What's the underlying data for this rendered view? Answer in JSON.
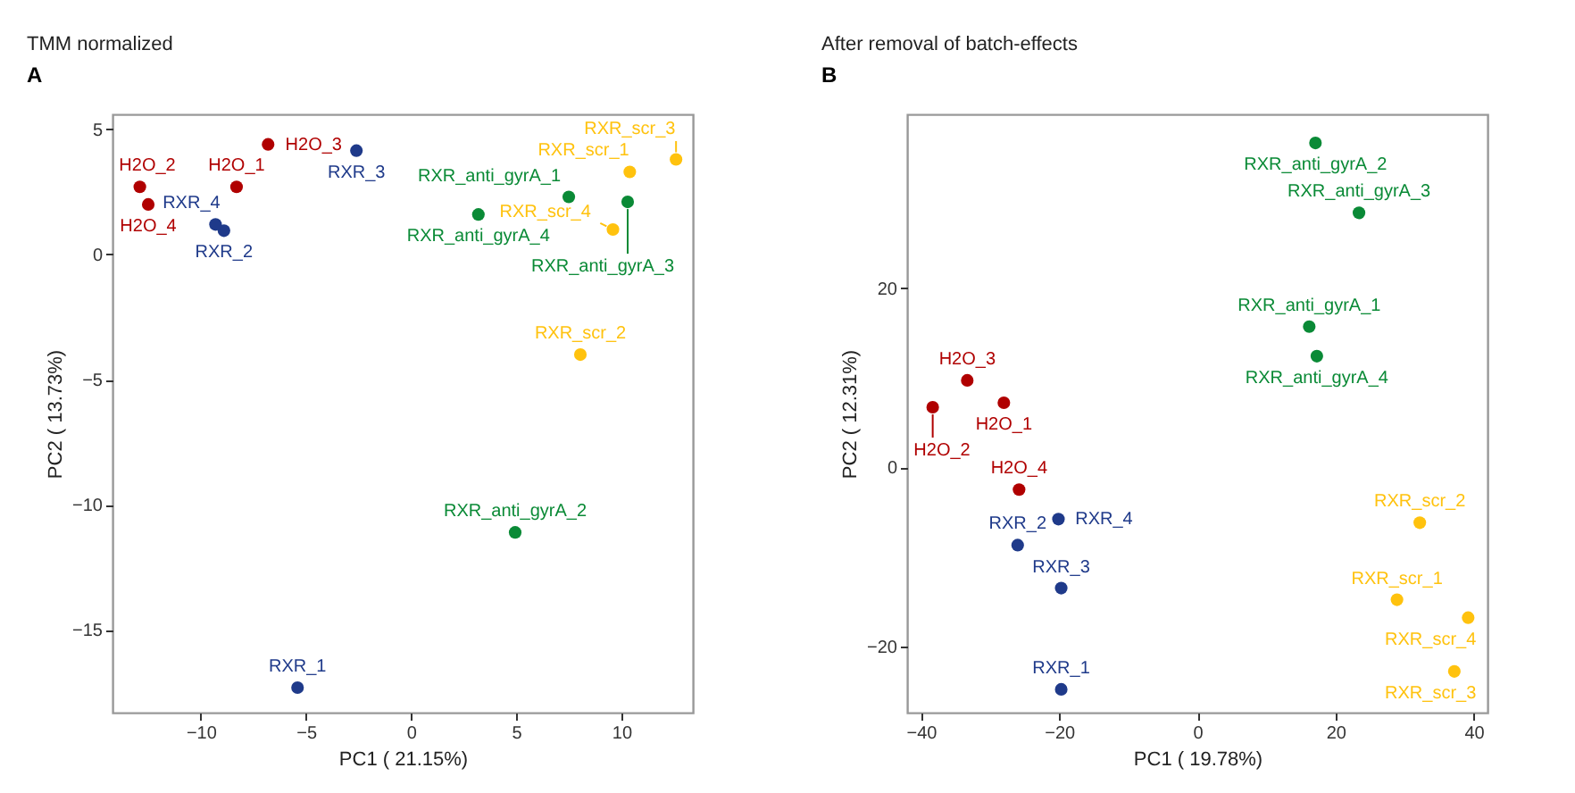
{
  "chart_data": [
    {
      "type": "scatter",
      "title": "TMM normalized",
      "xlabel": "PC1 ( 21.15%)",
      "ylabel": "PC2 ( 13.73%)",
      "xlim": [
        -14.2,
        13.4
      ],
      "ylim": [
        -18.3,
        5.6
      ],
      "xticks": [
        -10,
        -5,
        0,
        5,
        10
      ],
      "yticks": [
        -15,
        -10,
        -5,
        0,
        5
      ],
      "grid": false,
      "marker": "circle",
      "series": [
        {
          "color": "#b00000",
          "x": [
            -8.3,
            -12.9,
            -6.8,
            -12.5
          ],
          "values": [
            2.7,
            2.7,
            4.4,
            2.0
          ]
        },
        {
          "color": "#1f3a8a",
          "x": [
            -5.4,
            -8.9,
            -2.6,
            -9.3
          ],
          "values": [
            -17.3,
            0.95,
            4.15,
            1.2
          ]
        },
        {
          "color": "#0a8a36",
          "x": [
            7.5,
            4.95,
            10.3,
            3.2
          ],
          "values": [
            2.3,
            -11.1,
            2.1,
            1.6
          ]
        },
        {
          "color": "#ffc20e",
          "x": [
            10.4,
            8.05,
            12.6,
            9.6
          ],
          "values": [
            3.3,
            -4.0,
            3.8,
            1.0
          ]
        }
      ],
      "annotations": [
        "A",
        {
          "text": "H2O_1",
          "x": -8.3,
          "y": 2.7
        },
        {
          "text": "H2O_2",
          "x": -12.9,
          "y": 2.7
        },
        {
          "text": "H2O_3",
          "x": -6.8,
          "y": 4.4
        },
        {
          "text": "H2O_4",
          "x": -12.5,
          "y": 2.0
        },
        {
          "text": "RXR_1",
          "x": -5.4,
          "y": -17.3
        },
        {
          "text": "RXR_2",
          "x": -8.9,
          "y": 0.95
        },
        {
          "text": "RXR_3",
          "x": -2.6,
          "y": 4.15
        },
        {
          "text": "RXR_4",
          "x": -9.3,
          "y": 1.2
        },
        {
          "text": "RXR_anti_gyrA_1",
          "x": 7.5,
          "y": 2.3
        },
        {
          "text": "RXR_anti_gyrA_2",
          "x": 4.95,
          "y": -11.1
        },
        {
          "text": "RXR_anti_gyrA_3",
          "x": 10.3,
          "y": 2.1
        },
        {
          "text": "RXR_anti_gyrA_4",
          "x": 3.2,
          "y": 1.6
        },
        {
          "text": "RXR_scr_1",
          "x": 10.4,
          "y": 3.3
        },
        {
          "text": "RXR_scr_2",
          "x": 8.05,
          "y": -4.0
        },
        {
          "text": "RXR_scr_3",
          "x": 12.6,
          "y": 3.8
        },
        {
          "text": "RXR_scr_4",
          "x": 9.6,
          "y": 1.0
        }
      ]
    },
    {
      "type": "scatter",
      "title": "After removal of batch-effects",
      "xlabel": "PC1 ( 19.78%)",
      "ylabel": "PC2 ( 12.31%)",
      "xlim": [
        -42,
        42
      ],
      "ylim": [
        -27.4,
        39.4
      ],
      "xticks": [
        -40,
        -20,
        0,
        20,
        40
      ],
      "yticks": [
        -20,
        0,
        20
      ],
      "grid": false,
      "marker": "circle",
      "series": [
        {
          "color": "#b00000",
          "x": [
            -28.0,
            -38.3,
            -33.3,
            -25.8
          ],
          "values": [
            7.2,
            6.7,
            9.7,
            -2.5
          ]
        },
        {
          "color": "#1f3a8a",
          "x": [
            -19.7,
            -26.0,
            -19.7,
            -20.1
          ],
          "values": [
            -24.8,
            -8.7,
            -13.5,
            -5.8
          ]
        },
        {
          "color": "#0a8a36",
          "x": [
            16.2,
            17.1,
            23.4,
            17.3
          ],
          "values": [
            15.7,
            36.2,
            28.4,
            12.4
          ]
        },
        {
          "color": "#ffc20e",
          "x": [
            28.9,
            32.2,
            37.2,
            39.2
          ],
          "values": [
            -14.8,
            -6.2,
            -22.8,
            -16.8
          ]
        }
      ],
      "annotations": [
        "B",
        {
          "text": "H2O_1",
          "x": -28.0,
          "y": 7.2
        },
        {
          "text": "H2O_2",
          "x": -38.3,
          "y": 6.7
        },
        {
          "text": "H2O_3",
          "x": -33.3,
          "y": 9.7
        },
        {
          "text": "H2O_4",
          "x": -25.8,
          "y": -2.5
        },
        {
          "text": "RXR_1",
          "x": -19.7,
          "y": -24.8
        },
        {
          "text": "RXR_2",
          "x": -26.0,
          "y": -8.7
        },
        {
          "text": "RXR_3",
          "x": -19.7,
          "y": -13.5
        },
        {
          "text": "RXR_4",
          "x": -20.1,
          "y": -5.8
        },
        {
          "text": "RXR_anti_gyrA_1",
          "x": 16.2,
          "y": 15.7
        },
        {
          "text": "RXR_anti_gyrA_2",
          "x": 17.1,
          "y": 36.2
        },
        {
          "text": "RXR_anti_gyrA_3",
          "x": 23.4,
          "y": 28.4
        },
        {
          "text": "RXR_anti_gyrA_4",
          "x": 17.3,
          "y": 12.4
        },
        {
          "text": "RXR_scr_1",
          "x": 28.9,
          "y": -14.8
        },
        {
          "text": "RXR_scr_2",
          "x": 32.2,
          "y": -6.2
        },
        {
          "text": "RXR_scr_3",
          "x": 37.2,
          "y": -22.8
        },
        {
          "text": "RXR_scr_4",
          "x": 39.2,
          "y": -16.8
        }
      ]
    }
  ]
}
